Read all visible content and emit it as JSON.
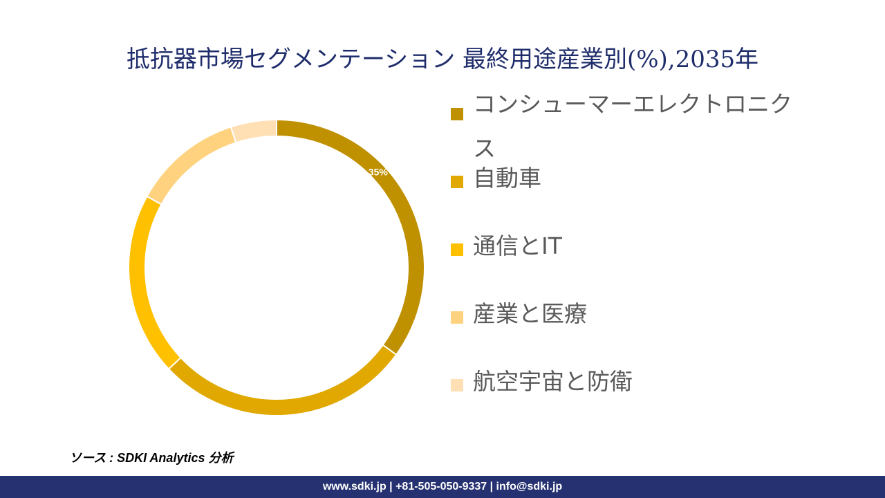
{
  "title": "抵抗器市場セグメンテーション 最終用途産業別(%),2035年",
  "chart_data": {
    "type": "pie",
    "donut": true,
    "categories": [
      "コンシューマーエレクトロニクス",
      "自動車",
      "通信とIT",
      "産業と医療",
      "航空宇宙と防衛"
    ],
    "values": [
      35,
      28,
      20,
      12,
      5
    ],
    "data_labels": [
      "35%",
      "",
      "",
      "",
      ""
    ],
    "colors": [
      "#BF9000",
      "#E0A800",
      "#FFC000",
      "#FFD27F",
      "#FFE0B5"
    ],
    "legend_position": "right"
  },
  "source": "ソース : SDKI Analytics 分析",
  "footer": "www.sdki.jp | +81-505-050-9337 | info@sdki.jp"
}
